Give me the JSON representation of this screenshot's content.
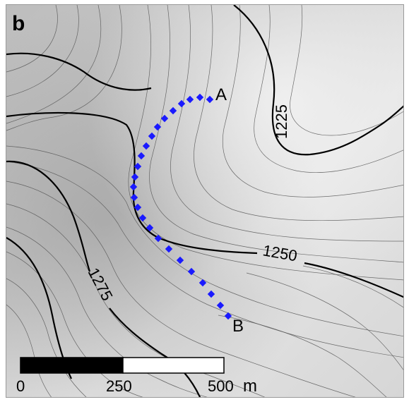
{
  "panel": {
    "label": "b"
  },
  "contours": {
    "labels": [
      "1225",
      "1250",
      "1275"
    ]
  },
  "route": {
    "start_label": "A",
    "end_label": "B",
    "marker_color": "#1a1aff"
  },
  "scale_bar": {
    "ticks": [
      "0",
      "250",
      "500"
    ],
    "unit": "m"
  },
  "colors": {
    "index_contour": "#000000",
    "minor_contour": "#555555",
    "route": "#1a1aff"
  }
}
